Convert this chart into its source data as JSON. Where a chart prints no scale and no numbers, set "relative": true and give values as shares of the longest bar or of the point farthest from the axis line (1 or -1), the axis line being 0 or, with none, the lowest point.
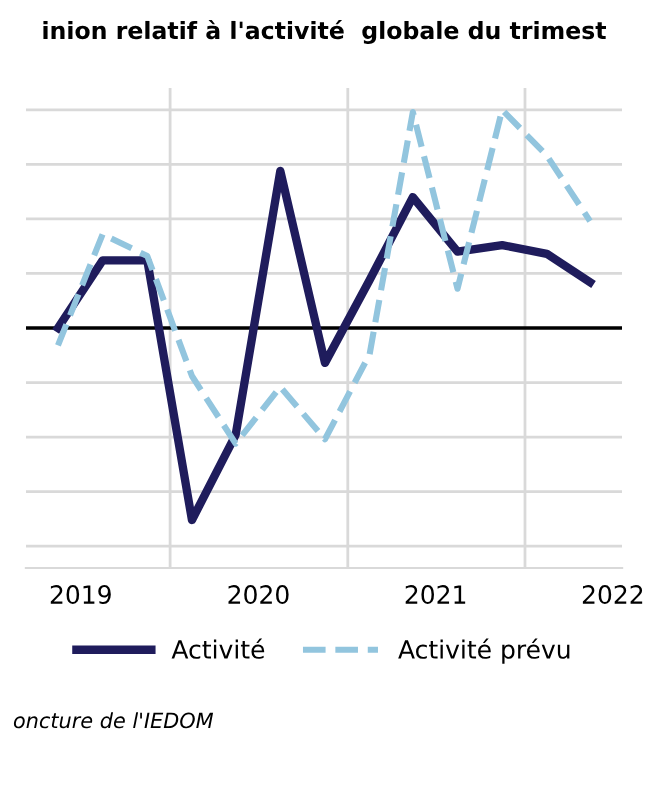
{
  "chart_data": {
    "type": "line",
    "title": "inion relatif à l'activité  globale du trimest",
    "x": [
      "2019-05-15",
      "2019-08-15",
      "2019-11-15",
      "2020-02-15",
      "2020-05-15",
      "2020-08-15",
      "2020-11-15",
      "2021-02-15",
      "2021-05-15",
      "2021-08-15",
      "2021-11-15",
      "2022-02-15",
      "2022-05-15"
    ],
    "series": [
      {
        "name": "Activité",
        "color": "#1f1c5c",
        "line_style": "solid",
        "values": [
          0.0,
          0.31,
          0.31,
          -0.88,
          -0.49,
          0.72,
          -0.16,
          0.22,
          0.6,
          0.35,
          0.38,
          0.34,
          0.21
        ]
      },
      {
        "name": "Activité prévu",
        "color": "#92c5de",
        "line_style": "dashed",
        "values": [
          -0.08,
          0.43,
          0.33,
          -0.22,
          -0.53,
          -0.27,
          -0.51,
          -0.12,
          0.99,
          0.18,
          1.0,
          0.79,
          0.49
        ]
      }
    ],
    "relative": true,
    "xlim": [
      "2019-03-10",
      "2022-07-20"
    ],
    "xticks": [
      {
        "value": "2019-07-01",
        "label": "2019"
      },
      {
        "value": "2020-07-01",
        "label": "2020"
      },
      {
        "value": "2021-07-01",
        "label": "2021"
      },
      {
        "value": "2022-07-01",
        "label": "2022"
      }
    ],
    "ref_lines": [
      {
        "axis": "x",
        "value": "2020-01-01",
        "color": "#d9d9d9"
      },
      {
        "axis": "x",
        "value": "2021-01-01",
        "color": "#d9d9d9"
      },
      {
        "axis": "x",
        "value": "2022-01-01",
        "color": "#d9d9d9"
      }
    ],
    "grid": "y",
    "legend": "bottom",
    "marker": "none",
    "annotations": [
      "oncture de l'IEDOM"
    ]
  }
}
